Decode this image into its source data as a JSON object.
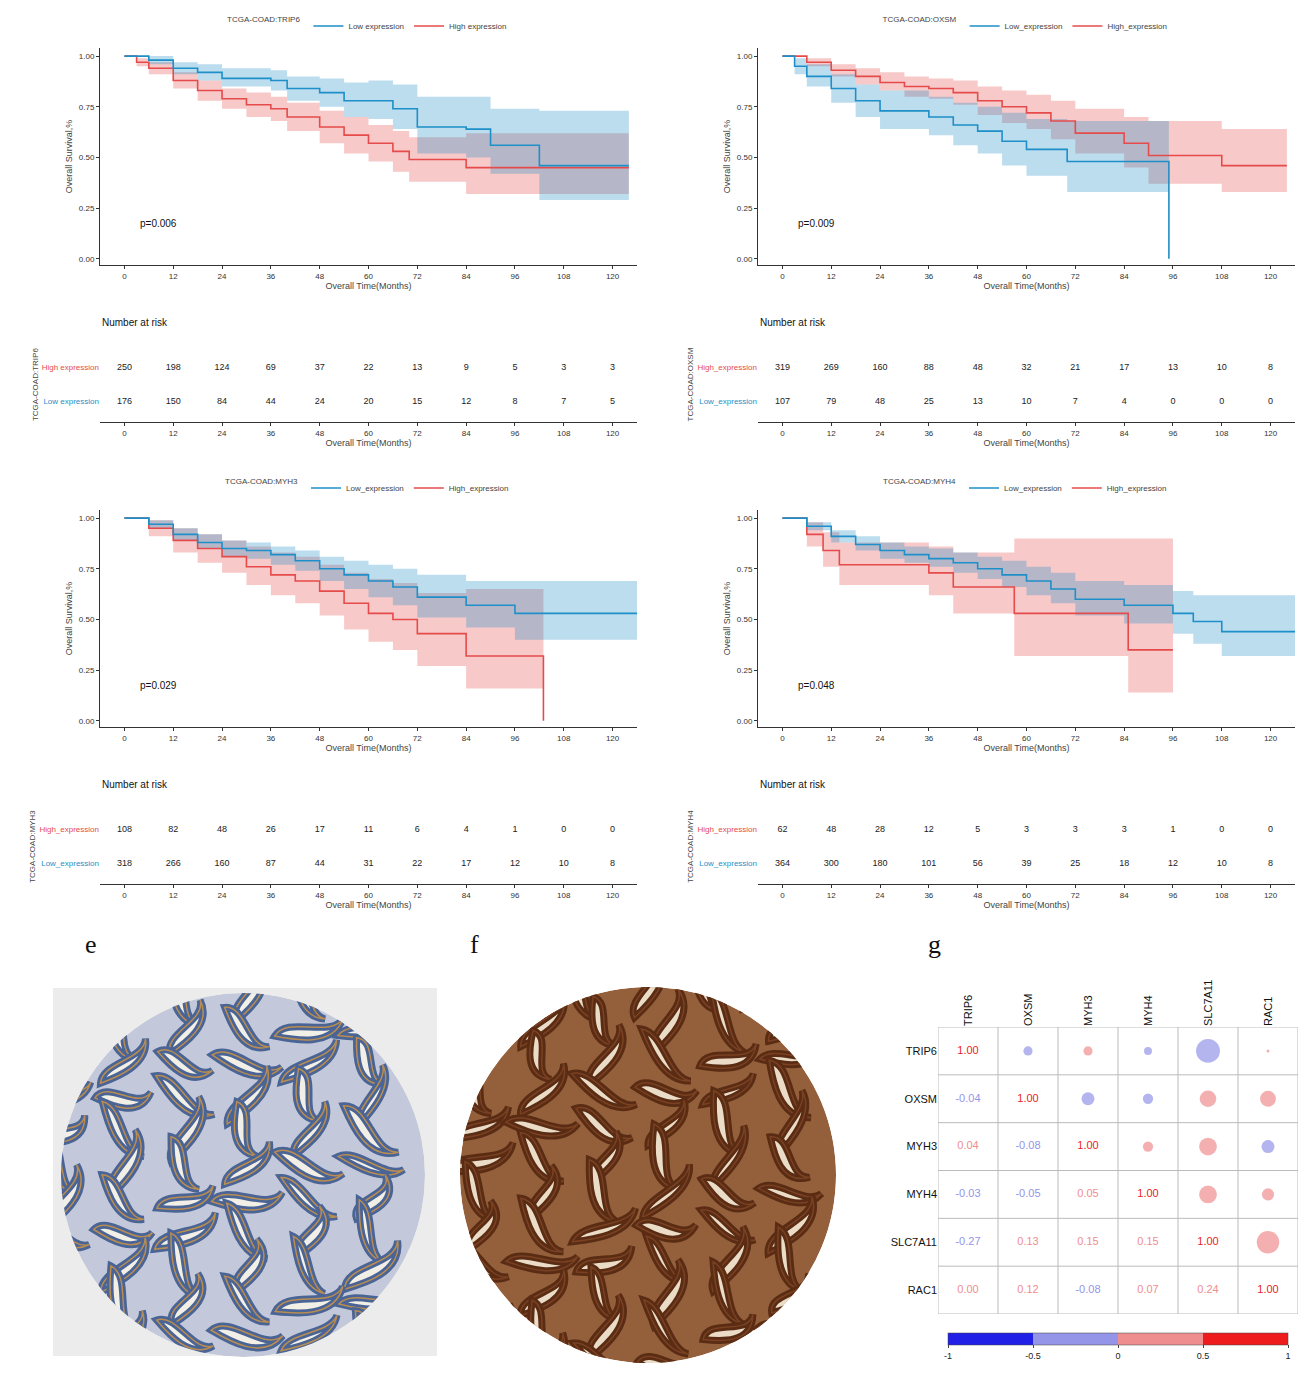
{
  "chart_data": [
    {
      "type": "step",
      "panel": "a",
      "legend_title": "TCGA-COAD:TRIP6",
      "legend": "top",
      "grid": false,
      "x_label": "Overall Time(Months)",
      "y_label": "Overall Survival,%",
      "p_label": "p=0.006",
      "xlim": [
        -6,
        126
      ],
      "xticks": [
        0,
        12,
        24,
        36,
        48,
        60,
        72,
        84,
        96,
        108,
        120
      ],
      "ylim": [
        -0.03,
        1.04
      ],
      "yticks": [
        {
          "value": 0,
          "label": "0.00"
        },
        {
          "value": 0.25,
          "label": "0.25"
        },
        {
          "value": 0.5,
          "label": "0.50"
        },
        {
          "value": 0.75,
          "label": "0.75"
        },
        {
          "value": 1,
          "label": "1.00"
        }
      ],
      "series": [
        {
          "name": "High expression",
          "color": "#E64B4B",
          "x": [
            0,
            3,
            6,
            12,
            18,
            24,
            30,
            36,
            40,
            48,
            54,
            60,
            66,
            70,
            84,
            124
          ],
          "values": [
            1,
            0.97,
            0.94,
            0.88,
            0.83,
            0.79,
            0.76,
            0.74,
            0.7,
            0.65,
            0.61,
            0.57,
            0.53,
            0.49,
            0.45,
            0.45
          ],
          "lower": [
            1,
            0.95,
            0.91,
            0.84,
            0.78,
            0.74,
            0.7,
            0.68,
            0.63,
            0.57,
            0.52,
            0.48,
            0.43,
            0.38,
            0.32,
            0.32
          ],
          "upper": [
            1,
            0.99,
            0.97,
            0.92,
            0.88,
            0.84,
            0.82,
            0.8,
            0.77,
            0.73,
            0.7,
            0.66,
            0.63,
            0.6,
            0.62,
            0.62
          ],
          "at_risk": [
            250,
            198,
            124,
            69,
            37,
            22,
            13,
            9,
            5,
            3,
            3
          ]
        },
        {
          "name": "Low expression",
          "color": "#1E8FC8",
          "x": [
            0,
            6,
            12,
            18,
            24,
            36,
            40,
            48,
            54,
            60,
            66,
            72,
            84,
            90,
            102,
            124
          ],
          "values": [
            1,
            0.98,
            0.94,
            0.92,
            0.89,
            0.88,
            0.84,
            0.82,
            0.78,
            0.78,
            0.74,
            0.65,
            0.64,
            0.56,
            0.46,
            0.46
          ],
          "lower": [
            1,
            0.96,
            0.91,
            0.88,
            0.85,
            0.83,
            0.78,
            0.75,
            0.7,
            0.69,
            0.64,
            0.52,
            0.5,
            0.42,
            0.29,
            0.29
          ],
          "upper": [
            1,
            1,
            0.97,
            0.96,
            0.94,
            0.93,
            0.9,
            0.89,
            0.87,
            0.88,
            0.86,
            0.8,
            0.8,
            0.74,
            0.73,
            0.73
          ],
          "at_risk": [
            176,
            150,
            84,
            44,
            24,
            20,
            15,
            12,
            8,
            7,
            5
          ]
        }
      ],
      "risk": {
        "title": "Number at risk",
        "label": "TCGA-COAD:TRIP6",
        "times": [
          0,
          12,
          24,
          36,
          48,
          60,
          72,
          84,
          96,
          108,
          120
        ]
      }
    },
    {
      "type": "step",
      "panel": "b",
      "legend_title": "TCGA-COAD:OXSM",
      "legend": "top",
      "grid": false,
      "x_label": "Overall Time(Months)",
      "y_label": "Overall Survival,%",
      "p_label": "p=0.009",
      "xlim": [
        -6,
        126
      ],
      "xticks": [
        0,
        12,
        24,
        36,
        48,
        60,
        72,
        84,
        96,
        108,
        120
      ],
      "ylim": [
        -0.03,
        1.04
      ],
      "yticks": [
        {
          "value": 0,
          "label": "0.00"
        },
        {
          "value": 0.25,
          "label": "0.25"
        },
        {
          "value": 0.5,
          "label": "0.50"
        },
        {
          "value": 0.75,
          "label": "0.75"
        },
        {
          "value": 1,
          "label": "1.00"
        }
      ],
      "series": [
        {
          "name": "High_expression",
          "color": "#E64B4B",
          "x": [
            0,
            6,
            12,
            18,
            24,
            30,
            36,
            42,
            48,
            54,
            60,
            66,
            72,
            84,
            90,
            108,
            124
          ],
          "values": [
            1,
            0.97,
            0.93,
            0.9,
            0.87,
            0.85,
            0.84,
            0.82,
            0.78,
            0.75,
            0.72,
            0.68,
            0.62,
            0.57,
            0.51,
            0.46,
            0.46
          ],
          "lower": [
            1,
            0.95,
            0.9,
            0.86,
            0.83,
            0.8,
            0.79,
            0.76,
            0.71,
            0.67,
            0.64,
            0.59,
            0.52,
            0.45,
            0.37,
            0.33,
            0.33
          ],
          "upper": [
            1,
            0.99,
            0.96,
            0.94,
            0.92,
            0.9,
            0.89,
            0.88,
            0.85,
            0.83,
            0.81,
            0.78,
            0.74,
            0.7,
            0.68,
            0.64,
            0.64
          ],
          "at_risk": [
            319,
            269,
            160,
            88,
            48,
            32,
            21,
            17,
            13,
            10,
            8
          ]
        },
        {
          "name": "Low_expression",
          "color": "#1E8FC8",
          "x": [
            0,
            3,
            6,
            12,
            18,
            24,
            36,
            42,
            48,
            54,
            60,
            70,
            95
          ],
          "values": [
            1,
            0.95,
            0.9,
            0.84,
            0.78,
            0.73,
            0.7,
            0.66,
            0.63,
            0.58,
            0.54,
            0.48,
            0
          ],
          "lower": [
            1,
            0.91,
            0.85,
            0.77,
            0.7,
            0.64,
            0.61,
            0.56,
            0.52,
            0.46,
            0.41,
            0.33,
            0
          ],
          "upper": [
            1,
            0.99,
            0.96,
            0.91,
            0.86,
            0.83,
            0.8,
            0.77,
            0.75,
            0.72,
            0.69,
            0.68,
            0
          ],
          "at_risk": [
            107,
            79,
            48,
            25,
            13,
            10,
            7,
            4,
            0,
            0,
            0
          ]
        }
      ],
      "risk": {
        "title": "Number at risk",
        "label": "TCGA-COAD:OXSM",
        "times": [
          0,
          12,
          24,
          36,
          48,
          60,
          72,
          84,
          96,
          108,
          120
        ]
      }
    },
    {
      "type": "step",
      "panel": "c",
      "legend_title": "TCGA-COAD:MYH3",
      "legend": "top",
      "grid": false,
      "x_label": "Overall Time(Months)",
      "y_label": "Overall Survival,%",
      "p_label": "p=0.029",
      "xlim": [
        -6,
        126
      ],
      "xticks": [
        0,
        12,
        24,
        36,
        48,
        60,
        72,
        84,
        96,
        108,
        120
      ],
      "ylim": [
        -0.03,
        1.04
      ],
      "yticks": [
        {
          "value": 0,
          "label": "0.00"
        },
        {
          "value": 0.25,
          "label": "0.25"
        },
        {
          "value": 0.5,
          "label": "0.50"
        },
        {
          "value": 0.75,
          "label": "0.75"
        },
        {
          "value": 1,
          "label": "1.00"
        }
      ],
      "series": [
        {
          "name": "High_expression",
          "color": "#E64B4B",
          "x": [
            0,
            6,
            12,
            18,
            24,
            30,
            36,
            42,
            48,
            54,
            60,
            66,
            72,
            84,
            103
          ],
          "values": [
            1,
            0.95,
            0.89,
            0.85,
            0.81,
            0.76,
            0.72,
            0.69,
            0.64,
            0.58,
            0.53,
            0.5,
            0.43,
            0.32,
            0
          ],
          "lower": [
            1,
            0.91,
            0.83,
            0.78,
            0.73,
            0.67,
            0.62,
            0.58,
            0.52,
            0.45,
            0.39,
            0.35,
            0.27,
            0.16,
            0
          ],
          "upper": [
            1,
            0.99,
            0.95,
            0.92,
            0.89,
            0.86,
            0.83,
            0.81,
            0.77,
            0.73,
            0.7,
            0.68,
            0.63,
            0.65,
            0
          ],
          "at_risk": [
            108,
            82,
            48,
            26,
            17,
            11,
            6,
            4,
            1,
            0,
            0
          ]
        },
        {
          "name": "Low_expression",
          "color": "#1E8FC8",
          "x": [
            0,
            6,
            12,
            18,
            24,
            30,
            36,
            42,
            48,
            54,
            60,
            66,
            72,
            84,
            96,
            126
          ],
          "values": [
            1,
            0.97,
            0.92,
            0.88,
            0.85,
            0.84,
            0.82,
            0.79,
            0.75,
            0.72,
            0.69,
            0.66,
            0.61,
            0.57,
            0.53,
            0.53
          ],
          "lower": [
            1,
            0.95,
            0.89,
            0.85,
            0.81,
            0.8,
            0.77,
            0.74,
            0.69,
            0.65,
            0.61,
            0.57,
            0.51,
            0.46,
            0.4,
            0.4
          ],
          "upper": [
            1,
            0.99,
            0.95,
            0.92,
            0.89,
            0.88,
            0.86,
            0.84,
            0.81,
            0.79,
            0.77,
            0.75,
            0.72,
            0.69,
            0.69,
            0.69
          ],
          "at_risk": [
            318,
            266,
            160,
            87,
            44,
            31,
            22,
            17,
            12,
            10,
            8
          ]
        }
      ],
      "risk": {
        "title": "Number at risk",
        "label": "TCGA-COAD:MYH3",
        "times": [
          0,
          12,
          24,
          36,
          48,
          60,
          72,
          84,
          96,
          108,
          120
        ]
      }
    },
    {
      "type": "step",
      "panel": "d",
      "legend_title": "TCGA-COAD:MYH4",
      "legend": "top",
      "grid": false,
      "x_label": "Overall Time(Months)",
      "y_label": "Overall Survival,%",
      "p_label": "p=0.048",
      "xlim": [
        -6,
        126
      ],
      "xticks": [
        0,
        12,
        24,
        36,
        48,
        60,
        72,
        84,
        96,
        108,
        120
      ],
      "ylim": [
        -0.03,
        1.04
      ],
      "yticks": [
        {
          "value": 0,
          "label": "0.00"
        },
        {
          "value": 0.25,
          "label": "0.25"
        },
        {
          "value": 0.5,
          "label": "0.50"
        },
        {
          "value": 0.75,
          "label": "0.75"
        },
        {
          "value": 1,
          "label": "1.00"
        }
      ],
      "series": [
        {
          "name": "High_expression",
          "color": "#E64B4B",
          "x": [
            0,
            6,
            10,
            14,
            36,
            42,
            57,
            85,
            96
          ],
          "values": [
            1,
            0.92,
            0.84,
            0.77,
            0.73,
            0.66,
            0.53,
            0.35,
            0.35
          ],
          "lower": [
            1,
            0.86,
            0.76,
            0.67,
            0.62,
            0.53,
            0.32,
            0.14,
            0.14
          ],
          "upper": [
            1,
            0.98,
            0.93,
            0.88,
            0.86,
            0.83,
            0.9,
            0.9,
            0.9
          ],
          "at_risk": [
            62,
            48,
            28,
            12,
            5,
            3,
            3,
            3,
            1,
            0,
            0
          ]
        },
        {
          "name": "Low_expression",
          "color": "#1E8FC8",
          "x": [
            0,
            6,
            12,
            18,
            24,
            30,
            36,
            42,
            48,
            54,
            60,
            66,
            72,
            84,
            96,
            101,
            108,
            126
          ],
          "values": [
            1,
            0.96,
            0.91,
            0.87,
            0.84,
            0.82,
            0.8,
            0.78,
            0.75,
            0.72,
            0.69,
            0.65,
            0.6,
            0.57,
            0.53,
            0.49,
            0.44,
            0.44
          ],
          "lower": [
            1,
            0.94,
            0.88,
            0.84,
            0.8,
            0.78,
            0.76,
            0.73,
            0.7,
            0.66,
            0.62,
            0.58,
            0.52,
            0.48,
            0.43,
            0.38,
            0.32,
            0.32
          ],
          "upper": [
            1,
            0.98,
            0.94,
            0.91,
            0.88,
            0.86,
            0.85,
            0.83,
            0.81,
            0.79,
            0.76,
            0.73,
            0.69,
            0.67,
            0.64,
            0.62,
            0.62,
            0.62
          ],
          "at_risk": [
            364,
            300,
            180,
            101,
            56,
            39,
            25,
            18,
            12,
            10,
            8
          ]
        }
      ],
      "risk": {
        "title": "Number at risk",
        "label": "TCGA-COAD:MYH4",
        "times": [
          0,
          12,
          24,
          36,
          48,
          60,
          72,
          84,
          96,
          108,
          120
        ]
      }
    },
    {
      "type": "image",
      "panel": "e"
    },
    {
      "type": "image",
      "panel": "f"
    },
    {
      "type": "correlation",
      "panel": "g",
      "categories": [
        "TRIP6",
        "OXSM",
        "MYH3",
        "MYH4",
        "SLC7A11",
        "RAC1"
      ],
      "values": [
        [
          1,
          -0.04,
          0.04,
          -0.03,
          -0.27,
          0
        ],
        [
          -0.04,
          1,
          -0.08,
          -0.05,
          0.13,
          0.12
        ],
        [
          0.04,
          -0.08,
          1,
          0.05,
          0.15,
          -0.08
        ],
        [
          -0.03,
          -0.05,
          0.05,
          1,
          0.15,
          0.07
        ],
        [
          -0.27,
          0.13,
          0.15,
          0.15,
          1,
          0.24
        ],
        [
          0,
          0.12,
          -0.08,
          0.07,
          0.24,
          1
        ]
      ],
      "value_labels": [
        [
          "1.00",
          "-0.04",
          "0.04",
          "-0.03",
          "-0.27",
          "0.00"
        ],
        [
          "-0.04",
          "1.00",
          "-0.08",
          "-0.05",
          "0.13",
          "0.12"
        ],
        [
          "0.04",
          "-0.08",
          "1.00",
          "0.05",
          "0.15",
          "-0.08"
        ],
        [
          "-0.03",
          "-0.05",
          "0.05",
          "1.00",
          "0.15",
          "0.07"
        ],
        [
          "-0.27",
          "0.13",
          "0.15",
          "0.15",
          "1.00",
          "0.24"
        ],
        [
          "0.00",
          "0.12",
          "-0.08",
          "0.07",
          "0.24",
          "1.00"
        ]
      ],
      "colorbar": {
        "range": [
          -1,
          1
        ],
        "ticks": [
          -1,
          -0.5,
          0,
          0.5,
          1
        ],
        "colors": [
          "#2020e6",
          "#9494e8",
          "#ef8e8e",
          "#ee1c1c"
        ]
      }
    }
  ]
}
